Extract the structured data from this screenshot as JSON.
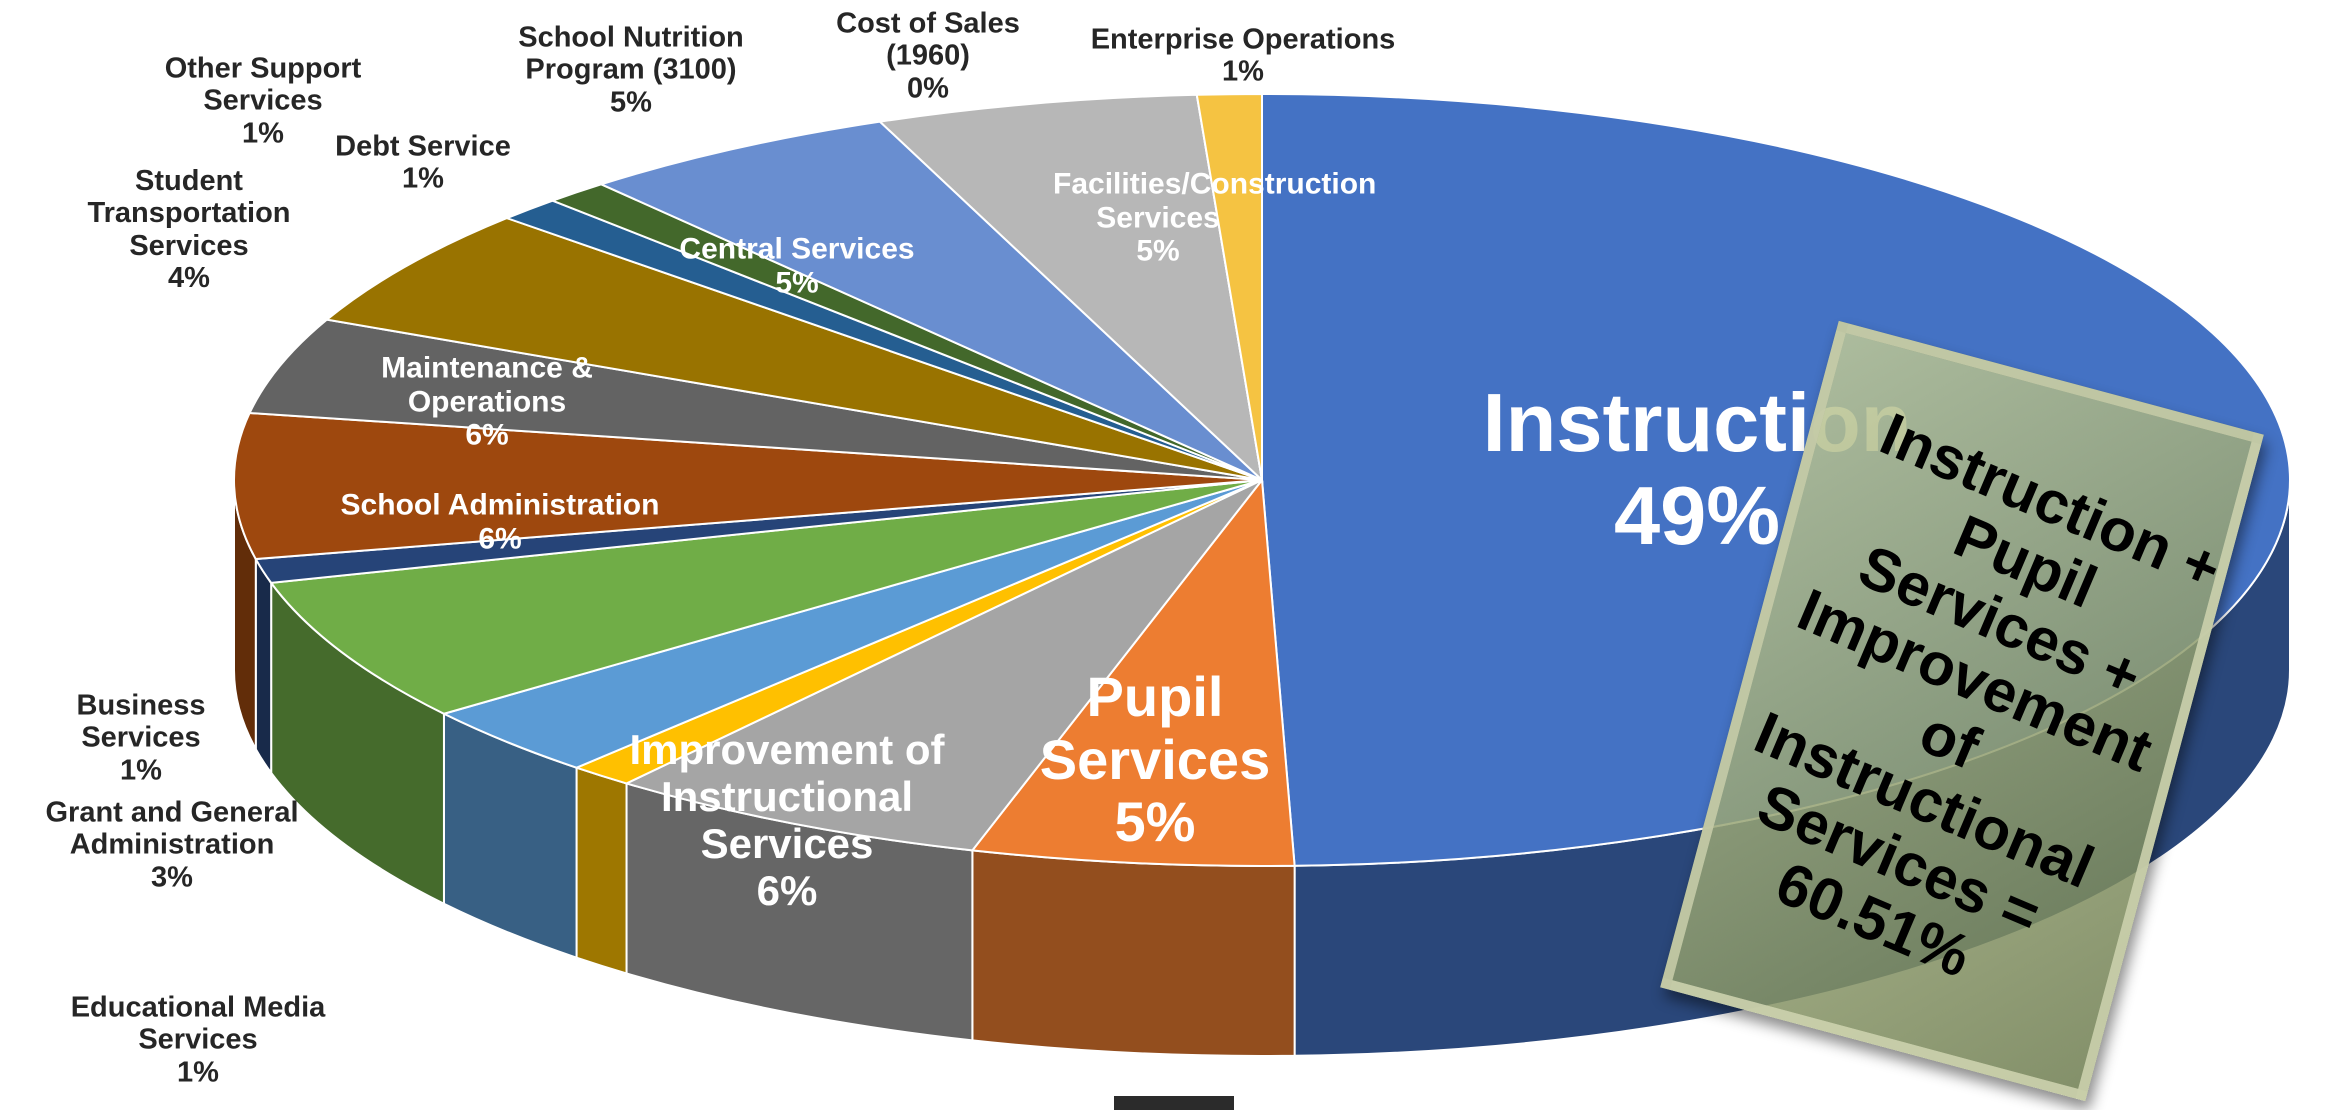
{
  "chart_data": {
    "type": "pie",
    "categories": [
      "Instruction",
      "Pupil Services",
      "Improvement of Instructional Services",
      "Educational Media Services",
      "Grant and General Administration",
      "School Administration",
      "Business Services",
      "Maintenance & Operations",
      "Student Transportation Services",
      "Central Services",
      "Debt Service",
      "Other Support Services",
      "School Nutrition Program (3100)",
      "Facilities/Construction Services",
      "Cost of Sales (1960)",
      "Enterprise Operations"
    ],
    "values": [
      49,
      5,
      6,
      1,
      3,
      6,
      1,
      6,
      4,
      5,
      1,
      1,
      5,
      5,
      0,
      1
    ],
    "value_labels": [
      "49%",
      "5%",
      "6%",
      "1%",
      "3%",
      "6%",
      "1%",
      "6%",
      "4%",
      "5%",
      "1%",
      "1%",
      "5%",
      "5%",
      "0%",
      "1%"
    ],
    "colors": [
      "#4472c4",
      "#ed7d31",
      "#a5a5a5",
      "#ffc000",
      "#5b9bd5",
      "#70ad47",
      "#264478",
      "#9e480e",
      "#636363",
      "#997300",
      "#255e91",
      "#43682b",
      "#698ed0",
      "#b7b7b7",
      "#f1975a",
      "#f5c342"
    ],
    "annotation": "Instruction + Pupil Services + Improvement of Instructional Services = 60.51%"
  }
}
